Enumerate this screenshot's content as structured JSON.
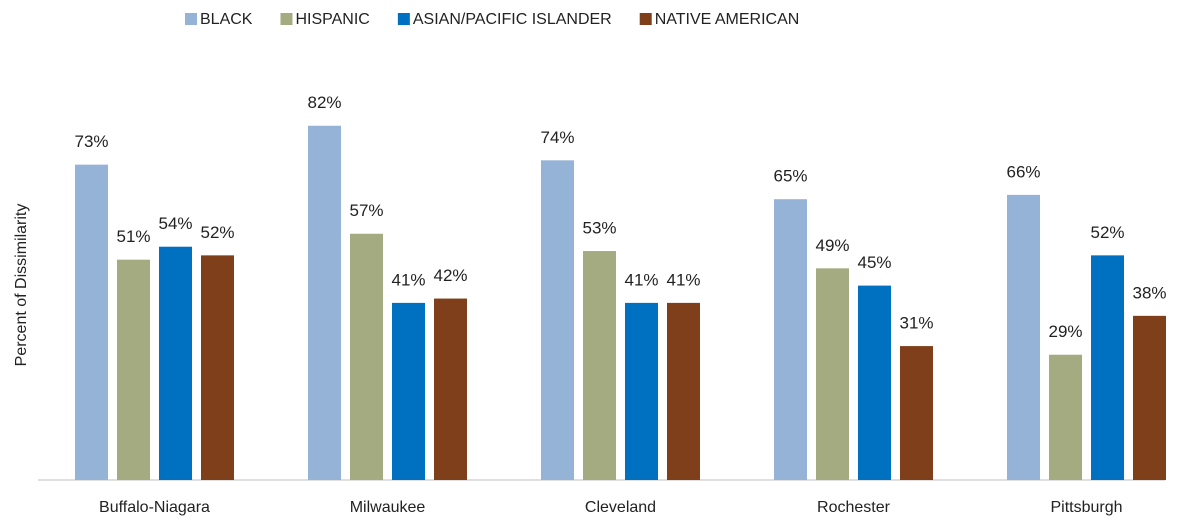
{
  "chart_data": {
    "type": "bar",
    "y_label": "Percent of Dissimilarity",
    "categories": [
      "Buffalo-Niagara",
      "Milwaukee",
      "Cleveland",
      "Rochester",
      "Pittsburgh"
    ],
    "series": [
      {
        "name": "BLACK",
        "color": "#95b3d7",
        "values": [
          73,
          82,
          74,
          65,
          66
        ],
        "value_labels": [
          "73%",
          "82%",
          "74%",
          "65%",
          "66%"
        ]
      },
      {
        "name": "HISPANIC",
        "color": "#a5ab81",
        "values": [
          51,
          57,
          53,
          49,
          29
        ],
        "value_labels": [
          "51%",
          "57%",
          "53%",
          "49%",
          "29%"
        ]
      },
      {
        "name": "ASIAN/PACIFIC ISLANDER",
        "color": "#0070c0",
        "values": [
          54,
          41,
          41,
          45,
          52
        ],
        "value_labels": [
          "54%",
          "41%",
          "41%",
          "45%",
          "52%"
        ]
      },
      {
        "name": "NATIVE AMERICAN",
        "color": "#7f3f1b",
        "values": [
          52,
          42,
          41,
          31,
          38
        ],
        "value_labels": [
          "52%",
          "42%",
          "41%",
          "31%",
          "38%"
        ]
      }
    ],
    "ylim": [
      0,
      100
    ],
    "legend": "top"
  }
}
